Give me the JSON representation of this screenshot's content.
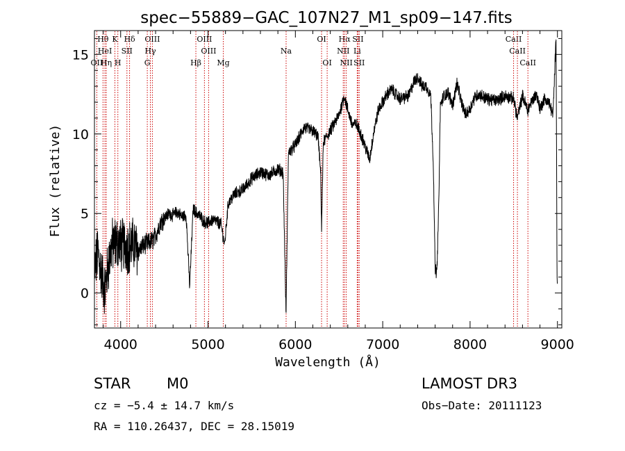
{
  "chart_data": {
    "type": "line",
    "title": "spec−55889−GAC_107N27_M1_sp09−147.fits",
    "xlabel": "Wavelength (Å)",
    "ylabel": "Flux (relative)",
    "xlim": [
      3700,
      9050
    ],
    "ylim": [
      -2.2,
      16.5
    ],
    "xticks": [
      4000,
      5000,
      6000,
      7000,
      8000,
      9000
    ],
    "xtick_labels": [
      "4000",
      "5000",
      "6000",
      "7000",
      "8000",
      "9000"
    ],
    "yticks": [
      0,
      5,
      10,
      15
    ],
    "ytick_labels": [
      "0",
      "5",
      "10",
      "15"
    ],
    "line_color": "#000000",
    "marker_color": "#cc0000",
    "series": [
      {
        "name": "spectrum",
        "anchors": [
          [
            3700,
            1.4
          ],
          [
            3740,
            2.6
          ],
          [
            3780,
            1.2
          ],
          [
            3820,
            0.2
          ],
          [
            3860,
            1.8
          ],
          [
            3900,
            3.0
          ],
          [
            3960,
            3.2
          ],
          [
            4000,
            3.0
          ],
          [
            4050,
            3.0
          ],
          [
            4100,
            2.9
          ],
          [
            4150,
            3.1
          ],
          [
            4200,
            2.6
          ],
          [
            4260,
            3.0
          ],
          [
            4300,
            3.1
          ],
          [
            4340,
            3.2
          ],
          [
            4380,
            3.4
          ],
          [
            4420,
            3.9
          ],
          [
            4460,
            4.5
          ],
          [
            4500,
            4.7
          ],
          [
            4550,
            5.0
          ],
          [
            4600,
            4.9
          ],
          [
            4650,
            5.1
          ],
          [
            4700,
            4.8
          ],
          [
            4750,
            4.9
          ],
          [
            4790,
            0.4
          ],
          [
            4830,
            5.3
          ],
          [
            4870,
            5.0
          ],
          [
            4900,
            4.9
          ],
          [
            4950,
            4.5
          ],
          [
            5000,
            4.4
          ],
          [
            5050,
            4.6
          ],
          [
            5100,
            4.5
          ],
          [
            5150,
            4.3
          ],
          [
            5190,
            3.0
          ],
          [
            5230,
            5.6
          ],
          [
            5300,
            6.2
          ],
          [
            5400,
            6.5
          ],
          [
            5500,
            7.2
          ],
          [
            5600,
            7.6
          ],
          [
            5700,
            7.4
          ],
          [
            5800,
            7.8
          ],
          [
            5860,
            7.6
          ],
          [
            5893,
            -1.4
          ],
          [
            5920,
            8.8
          ],
          [
            6000,
            9.3
          ],
          [
            6100,
            10.4
          ],
          [
            6200,
            10.2
          ],
          [
            6260,
            9.8
          ],
          [
            6290,
            7.5
          ],
          [
            6300,
            4.0
          ],
          [
            6320,
            9.5
          ],
          [
            6400,
            10.2
          ],
          [
            6500,
            11.2
          ],
          [
            6560,
            12.4
          ],
          [
            6600,
            11.5
          ],
          [
            6650,
            10.6
          ],
          [
            6700,
            10.6
          ],
          [
            6750,
            10.0
          ],
          [
            6800,
            9.2
          ],
          [
            6850,
            8.4
          ],
          [
            6900,
            10.2
          ],
          [
            6950,
            11.5
          ],
          [
            7000,
            12.0
          ],
          [
            7050,
            12.5
          ],
          [
            7100,
            12.8
          ],
          [
            7200,
            12.2
          ],
          [
            7300,
            12.4
          ],
          [
            7350,
            13.2
          ],
          [
            7400,
            13.6
          ],
          [
            7450,
            13.0
          ],
          [
            7500,
            13.0
          ],
          [
            7550,
            12.4
          ],
          [
            7580,
            8.0
          ],
          [
            7600,
            1.5
          ],
          [
            7620,
            1.3
          ],
          [
            7640,
            5.2
          ],
          [
            7660,
            11.8
          ],
          [
            7700,
            12.4
          ],
          [
            7750,
            12.6
          ],
          [
            7800,
            11.8
          ],
          [
            7850,
            13.2
          ],
          [
            7900,
            12.0
          ],
          [
            7950,
            11.2
          ],
          [
            8000,
            11.6
          ],
          [
            8050,
            12.3
          ],
          [
            8100,
            12.5
          ],
          [
            8200,
            12.2
          ],
          [
            8300,
            12.1
          ],
          [
            8400,
            12.4
          ],
          [
            8500,
            12.2
          ],
          [
            8540,
            11.0
          ],
          [
            8600,
            12.4
          ],
          [
            8660,
            11.5
          ],
          [
            8700,
            12.0
          ],
          [
            8760,
            12.5
          ],
          [
            8800,
            11.6
          ],
          [
            8850,
            12.2
          ],
          [
            8900,
            12.0
          ],
          [
            8950,
            11.2
          ],
          [
            8985,
            16.2
          ],
          [
            8995,
            1.0
          ],
          [
            9000,
            0.9
          ]
        ]
      }
    ],
    "line_markers": [
      {
        "label": "Hθ",
        "wl": 3798,
        "tier": 1
      },
      {
        "label": "OII",
        "wl": 3727,
        "tier": 3
      },
      {
        "label": "HeI",
        "wl": 3820,
        "tier": 2
      },
      {
        "label": "Hη",
        "wl": 3835,
        "tier": 3
      },
      {
        "label": "K",
        "wl": 3934,
        "tier": 1
      },
      {
        "label": "H",
        "wl": 3968,
        "tier": 3
      },
      {
        "label": "SII",
        "wl": 4072,
        "tier": 2
      },
      {
        "label": "Hδ",
        "wl": 4102,
        "tier": 1
      },
      {
        "label": "OIII",
        "wl": 4363,
        "tier": 1
      },
      {
        "label": "Hγ",
        "wl": 4340,
        "tier": 2
      },
      {
        "label": "G",
        "wl": 4305,
        "tier": 3
      },
      {
        "label": "Hβ",
        "wl": 4861,
        "tier": 3
      },
      {
        "label": "OIII",
        "wl": 4959,
        "tier": 1
      },
      {
        "label": "OIII",
        "wl": 5007,
        "tier": 2
      },
      {
        "label": "Mg",
        "wl": 5175,
        "tier": 3
      },
      {
        "label": "Na",
        "wl": 5894,
        "tier": 2
      },
      {
        "label": "OI",
        "wl": 6300,
        "tier": 1
      },
      {
        "label": "OI",
        "wl": 6364,
        "tier": 3
      },
      {
        "label": "Hα",
        "wl": 6563,
        "tier": 1
      },
      {
        "label": "NII",
        "wl": 6548,
        "tier": 2
      },
      {
        "label": "NII",
        "wl": 6583,
        "tier": 3
      },
      {
        "label": "SII",
        "wl": 6717,
        "tier": 1
      },
      {
        "label": "Li",
        "wl": 6708,
        "tier": 2
      },
      {
        "label": "SII",
        "wl": 6731,
        "tier": 3
      },
      {
        "label": "CaII",
        "wl": 8498,
        "tier": 1
      },
      {
        "label": "CaII",
        "wl": 8542,
        "tier": 2
      },
      {
        "label": "CaII",
        "wl": 8662,
        "tier": 3
      }
    ]
  },
  "info": {
    "class": "STAR",
    "subclass": "M0",
    "survey": "LAMOST DR3",
    "redshift": "cz = −5.4 ± 14.7 km/s",
    "obs_date": "Obs−Date: 20111123",
    "coords": "RA = 110.26437, DEC =  28.15019"
  }
}
